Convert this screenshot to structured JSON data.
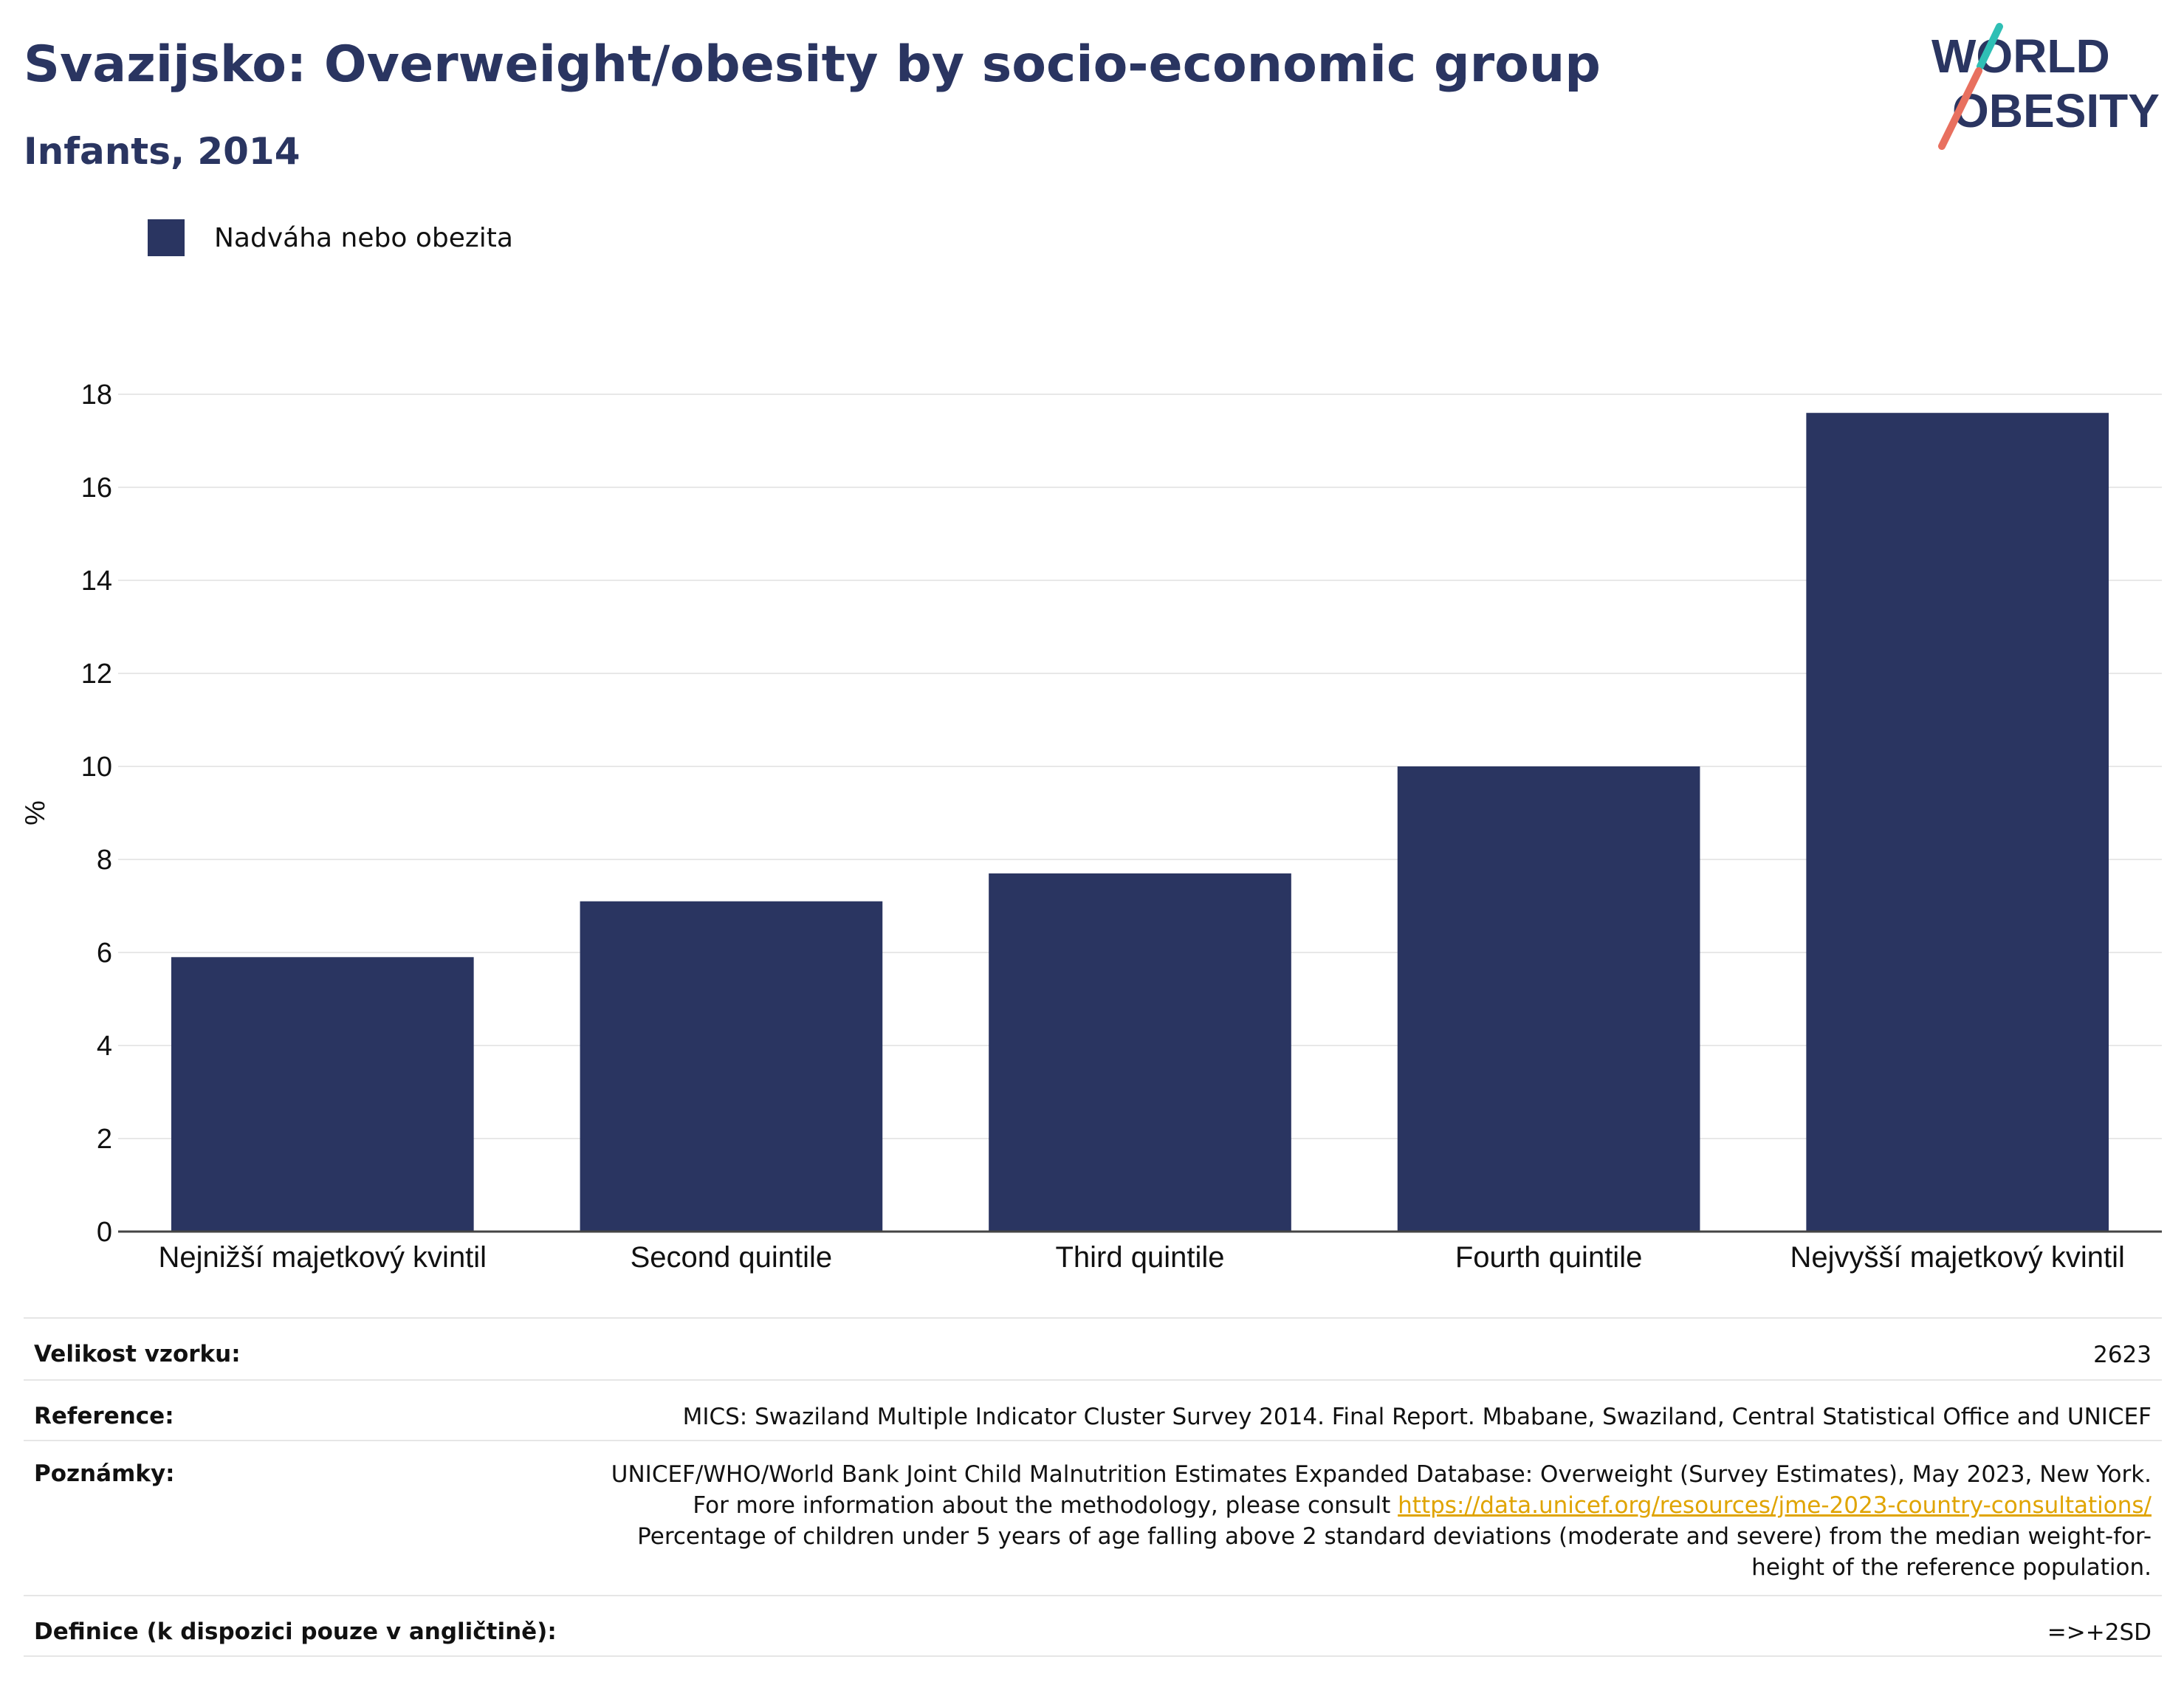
{
  "header": {
    "title": "Svazijsko: Overweight/obesity by socio-economic group",
    "subtitle": "Infants, 2014"
  },
  "logo": {
    "line1": "WORLD",
    "line2": "OBESITY",
    "colors": {
      "text": "#2a3561",
      "teal": "#2fbfb5",
      "coral": "#e8705f"
    }
  },
  "chart_data": {
    "type": "bar",
    "categories": [
      "Nejnižší majetkový kvintil",
      "Second quintile",
      "Third quintile",
      "Fourth quintile",
      "Nejvyšší majetkový kvintil"
    ],
    "series": [
      {
        "name": "Nadváha nebo obezita",
        "values": [
          5.9,
          7.1,
          7.7,
          10.0,
          17.6
        ],
        "color": "#2a3561"
      }
    ],
    "xlabel": "",
    "ylabel": "%",
    "ylim": [
      0,
      18
    ],
    "yticks": [
      0,
      2,
      4,
      6,
      8,
      10,
      12,
      14,
      16,
      18
    ],
    "grid": true,
    "legend_position": "top-left"
  },
  "meta": {
    "sample": {
      "label": "Velikost vzorku:",
      "value": "2623"
    },
    "reference": {
      "label": "Reference:",
      "value": "MICS: Swaziland Multiple Indicator Cluster Survey 2014. Final Report. Mbabane, Swaziland, Central Statistical Office and UNICEF"
    },
    "notes": {
      "label": "Poznámky:",
      "text_before": "UNICEF/WHO/World Bank Joint Child Malnutrition Estimates Expanded Database: Overweight (Survey Estimates), May 2023, New York. For more information about the methodology, please consult",
      "link": "https://data.unicef.org/resources/jme-2023-country-consultations/",
      "text_after": "Percentage of children under 5 years of age falling above 2 standard deviations (moderate and severe) from the median weight-for-height of the reference population."
    },
    "definition": {
      "label": "Definice (k dispozici pouze v angličtině):",
      "value": "=>+2SD"
    }
  }
}
